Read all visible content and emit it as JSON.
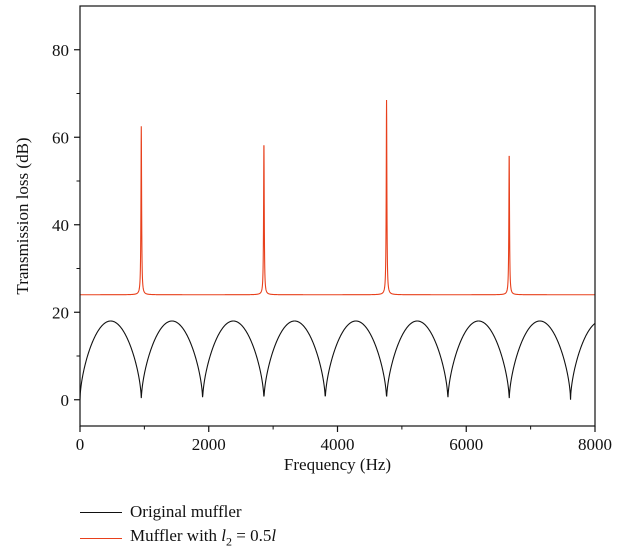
{
  "chart_data": {
    "type": "line",
    "title": "",
    "xlabel": "Frequency (Hz)",
    "ylabel": "Transmission loss (dB)",
    "xlim": [
      0,
      8000
    ],
    "ylim": [
      -6,
      90
    ],
    "xticks": [
      0,
      2000,
      4000,
      6000,
      8000
    ],
    "xtick_labels": [
      "0",
      "2000",
      "4000",
      "6000",
      "8000"
    ],
    "yticks": [
      0,
      20,
      40,
      60,
      80
    ],
    "ytick_labels": [
      "0",
      "20",
      "40",
      "60",
      "80"
    ],
    "grid": false,
    "legend_position": "bottom-left",
    "series": [
      {
        "name": "Original muffler",
        "color": "#111111",
        "period_hz": 1905,
        "peak_tl_db": 18.0,
        "zeros_hz": [
          0,
          952,
          1905,
          2857,
          3810,
          4762,
          5714,
          6667,
          7619
        ]
      },
      {
        "name_parts": [
          "Muffler with ",
          "l",
          "2",
          " = 0.5",
          "l"
        ],
        "color": "#e8401c",
        "period_hz": 1905,
        "dome_peak_tl_db": 24.0,
        "spikes": [
          {
            "x": 952,
            "y": 62.5
          },
          {
            "x": 2857,
            "y": 59.0
          },
          {
            "x": 4762,
            "y": 68.5
          },
          {
            "x": 6667,
            "y": 56.5
          }
        ]
      }
    ]
  }
}
